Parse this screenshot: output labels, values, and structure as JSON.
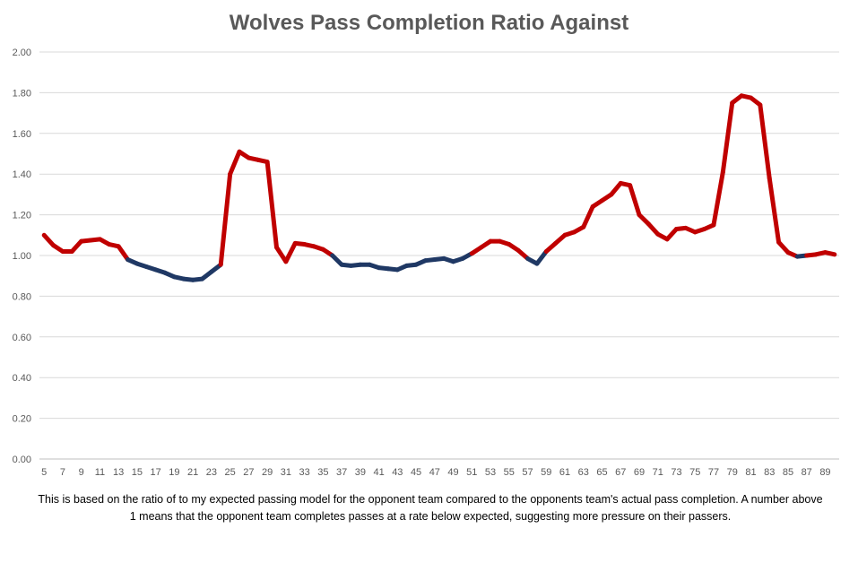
{
  "chart_data": {
    "type": "line",
    "title": "Wolves Pass Completion Ratio Against",
    "xlabel": "",
    "ylabel": "",
    "note": "This is based on the ratio of to my expected passing model for the opponent team compared to the opponents team's actual pass completion. A number above 1 means that the opponent team completes passes at a rate below expected, suggesting more pressure on their passers.",
    "ylim": [
      0,
      2.0
    ],
    "yticks": [
      "0.00",
      "0.20",
      "0.40",
      "0.60",
      "0.80",
      "1.00",
      "1.20",
      "1.40",
      "1.60",
      "1.80",
      "2.00"
    ],
    "xlim": [
      5,
      90
    ],
    "xticks": [
      5,
      7,
      9,
      11,
      13,
      15,
      17,
      19,
      21,
      23,
      25,
      27,
      29,
      31,
      33,
      35,
      37,
      39,
      41,
      43,
      45,
      47,
      49,
      51,
      53,
      55,
      57,
      59,
      61,
      63,
      65,
      67,
      69,
      71,
      73,
      75,
      77,
      79,
      81,
      83,
      85,
      87,
      89
    ],
    "grid": true,
    "legend": "none",
    "colors": {
      "above": "#c00000",
      "below": "#1f3864"
    },
    "x": [
      5,
      6,
      7,
      8,
      9,
      10,
      11,
      12,
      13,
      14,
      15,
      16,
      17,
      18,
      19,
      20,
      21,
      22,
      23,
      24,
      25,
      26,
      27,
      28,
      29,
      30,
      31,
      32,
      33,
      34,
      35,
      36,
      37,
      38,
      39,
      40,
      41,
      42,
      43,
      44,
      45,
      46,
      47,
      48,
      49,
      50,
      51,
      52,
      53,
      54,
      55,
      56,
      57,
      58,
      59,
      60,
      61,
      62,
      63,
      64,
      65,
      66,
      67,
      68,
      69,
      70,
      71,
      72,
      73,
      74,
      75,
      76,
      77,
      78,
      79,
      80,
      81,
      82,
      83,
      84,
      85,
      86,
      87,
      88,
      89,
      90
    ],
    "values": [
      1.1,
      1.05,
      1.02,
      1.02,
      1.07,
      1.075,
      1.08,
      1.055,
      1.045,
      0.98,
      0.96,
      0.945,
      0.93,
      0.915,
      0.895,
      0.885,
      0.88,
      0.885,
      0.92,
      0.955,
      1.4,
      1.51,
      1.48,
      1.47,
      1.46,
      1.04,
      0.97,
      1.06,
      1.055,
      1.045,
      1.03,
      1.0,
      0.955,
      0.95,
      0.955,
      0.955,
      0.94,
      0.935,
      0.93,
      0.95,
      0.955,
      0.975,
      0.98,
      0.985,
      0.97,
      0.985,
      1.01,
      1.04,
      1.07,
      1.07,
      1.055,
      1.025,
      0.985,
      0.96,
      1.02,
      1.06,
      1.1,
      1.115,
      1.14,
      1.24,
      1.27,
      1.3,
      1.355,
      1.345,
      1.2,
      1.155,
      1.105,
      1.08,
      1.13,
      1.135,
      1.115,
      1.13,
      1.15,
      1.41,
      1.75,
      1.785,
      1.775,
      1.74,
      1.38,
      1.065,
      1.015,
      0.995,
      1.0,
      1.005,
      1.015,
      1.005
    ]
  }
}
